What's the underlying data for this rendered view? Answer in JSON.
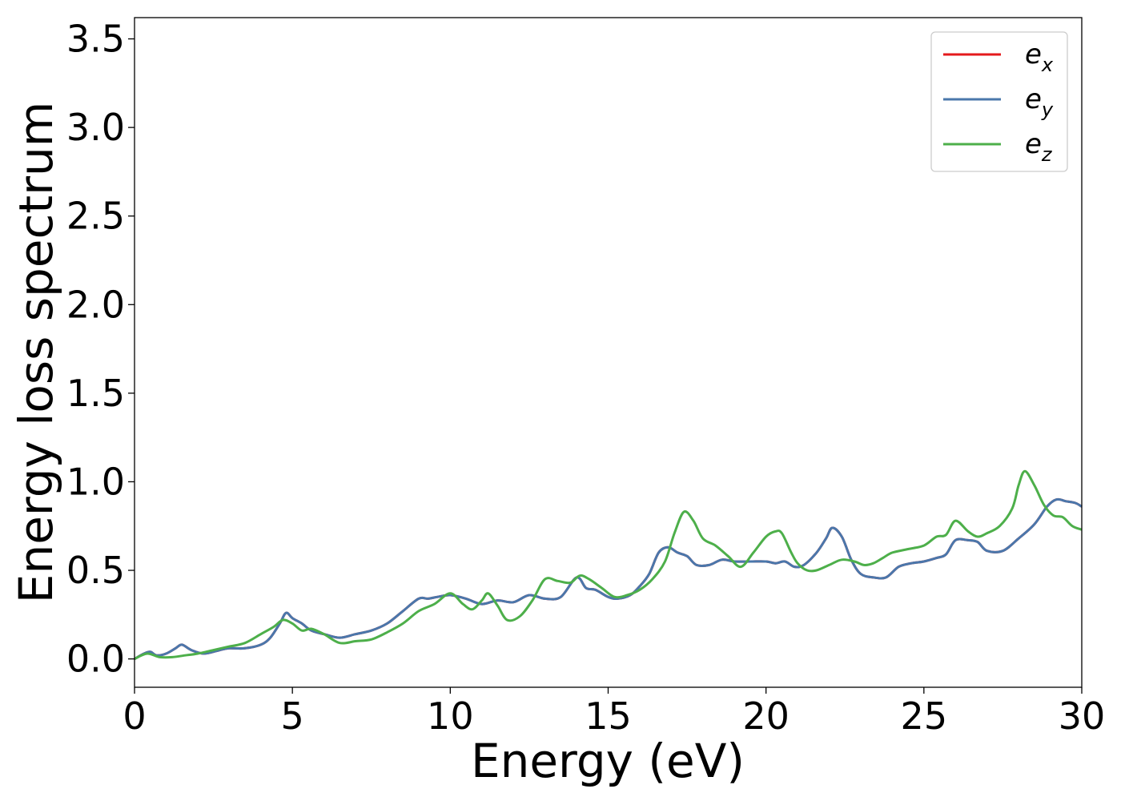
{
  "chart_data": {
    "type": "line",
    "xlabel": "Energy (eV)",
    "ylabel": "Energy loss spectrum",
    "xlim": [
      0,
      30
    ],
    "ylim": [
      -0.16,
      3.62
    ],
    "xticks": [
      "0",
      "5",
      "10",
      "15",
      "20",
      "25",
      "30"
    ],
    "yticks": [
      "0.0",
      "0.5",
      "1.0",
      "1.5",
      "2.0",
      "2.5",
      "3.0",
      "3.5"
    ],
    "grid": false,
    "legend_position": "top-right",
    "series": [
      {
        "name": "e",
        "subscript": "x",
        "color": "#e41a1c",
        "x": [
          0,
          0.3,
          0.5,
          0.7,
          1.0,
          1.3,
          1.5,
          1.8,
          2.2,
          2.7,
          3.0,
          3.5,
          4.0,
          4.3,
          4.6,
          4.8,
          5.0,
          5.3,
          5.6,
          6.0,
          6.5,
          7.0,
          7.5,
          8.0,
          8.5,
          9.0,
          9.3,
          9.6,
          10.0,
          10.5,
          11.0,
          11.5,
          12.0,
          12.5,
          13.0,
          13.5,
          14.0,
          14.3,
          14.6,
          15.0,
          15.3,
          15.7,
          16.0,
          16.3,
          16.6,
          16.9,
          17.2,
          17.5,
          17.8,
          18.2,
          18.6,
          19.0,
          19.5,
          20.0,
          20.3,
          20.6,
          20.9,
          21.2,
          21.6,
          21.9,
          22.1,
          22.4,
          22.7,
          23.0,
          23.4,
          23.8,
          24.2,
          24.6,
          25.0,
          25.4,
          25.7,
          26.0,
          26.4,
          26.7,
          27.0,
          27.5,
          28.0,
          28.5,
          28.9,
          29.2,
          29.5,
          29.8,
          30.0
        ],
        "values": [
          0.0,
          0.03,
          0.04,
          0.02,
          0.03,
          0.06,
          0.08,
          0.05,
          0.03,
          0.05,
          0.06,
          0.06,
          0.08,
          0.12,
          0.2,
          0.26,
          0.23,
          0.2,
          0.16,
          0.14,
          0.12,
          0.14,
          0.16,
          0.2,
          0.27,
          0.34,
          0.34,
          0.35,
          0.36,
          0.34,
          0.31,
          0.33,
          0.32,
          0.36,
          0.34,
          0.35,
          0.46,
          0.4,
          0.39,
          0.35,
          0.34,
          0.36,
          0.41,
          0.48,
          0.6,
          0.63,
          0.6,
          0.58,
          0.53,
          0.53,
          0.56,
          0.55,
          0.55,
          0.55,
          0.54,
          0.55,
          0.52,
          0.53,
          0.6,
          0.68,
          0.74,
          0.69,
          0.56,
          0.48,
          0.46,
          0.46,
          0.52,
          0.54,
          0.55,
          0.57,
          0.59,
          0.67,
          0.67,
          0.66,
          0.61,
          0.61,
          0.68,
          0.76,
          0.86,
          0.9,
          0.89,
          0.88,
          0.86
        ]
      },
      {
        "name": "e",
        "subscript": "y",
        "color": "#4a77ab",
        "x": [
          0,
          0.3,
          0.5,
          0.7,
          1.0,
          1.3,
          1.5,
          1.8,
          2.2,
          2.7,
          3.0,
          3.5,
          4.0,
          4.3,
          4.6,
          4.8,
          5.0,
          5.3,
          5.6,
          6.0,
          6.5,
          7.0,
          7.5,
          8.0,
          8.5,
          9.0,
          9.3,
          9.6,
          10.0,
          10.5,
          11.0,
          11.5,
          12.0,
          12.5,
          13.0,
          13.5,
          14.0,
          14.3,
          14.6,
          15.0,
          15.3,
          15.7,
          16.0,
          16.3,
          16.6,
          16.9,
          17.2,
          17.5,
          17.8,
          18.2,
          18.6,
          19.0,
          19.5,
          20.0,
          20.3,
          20.6,
          20.9,
          21.2,
          21.6,
          21.9,
          22.1,
          22.4,
          22.7,
          23.0,
          23.4,
          23.8,
          24.2,
          24.6,
          25.0,
          25.4,
          25.7,
          26.0,
          26.4,
          26.7,
          27.0,
          27.5,
          28.0,
          28.5,
          28.9,
          29.2,
          29.5,
          29.8,
          30.0
        ],
        "values": [
          0.0,
          0.03,
          0.04,
          0.02,
          0.03,
          0.06,
          0.08,
          0.05,
          0.03,
          0.05,
          0.06,
          0.06,
          0.08,
          0.12,
          0.2,
          0.26,
          0.23,
          0.2,
          0.16,
          0.14,
          0.12,
          0.14,
          0.16,
          0.2,
          0.27,
          0.34,
          0.34,
          0.35,
          0.36,
          0.34,
          0.31,
          0.33,
          0.32,
          0.36,
          0.34,
          0.35,
          0.46,
          0.4,
          0.39,
          0.35,
          0.34,
          0.36,
          0.41,
          0.48,
          0.6,
          0.63,
          0.6,
          0.58,
          0.53,
          0.53,
          0.56,
          0.55,
          0.55,
          0.55,
          0.54,
          0.55,
          0.52,
          0.53,
          0.6,
          0.68,
          0.74,
          0.69,
          0.56,
          0.48,
          0.46,
          0.46,
          0.52,
          0.54,
          0.55,
          0.57,
          0.59,
          0.67,
          0.67,
          0.66,
          0.61,
          0.61,
          0.68,
          0.76,
          0.86,
          0.9,
          0.89,
          0.88,
          0.86
        ]
      },
      {
        "name": "e",
        "subscript": "z",
        "color": "#4daf4a",
        "x": [
          0,
          0.4,
          0.8,
          1.2,
          1.6,
          2.0,
          2.5,
          3.0,
          3.5,
          4.0,
          4.4,
          4.7,
          5.0,
          5.3,
          5.6,
          6.0,
          6.5,
          7.0,
          7.5,
          8.0,
          8.5,
          9.0,
          9.5,
          10.0,
          10.4,
          10.7,
          11.0,
          11.2,
          11.5,
          11.8,
          12.2,
          12.6,
          13.0,
          13.4,
          13.8,
          14.1,
          14.4,
          14.8,
          15.2,
          15.6,
          16.0,
          16.4,
          16.8,
          17.1,
          17.4,
          17.7,
          18.0,
          18.4,
          18.8,
          19.2,
          19.6,
          20.0,
          20.3,
          20.5,
          20.8,
          21.0,
          21.3,
          21.6,
          22.0,
          22.4,
          22.8,
          23.1,
          23.4,
          23.7,
          24.0,
          24.5,
          25.0,
          25.4,
          25.7,
          26.0,
          26.4,
          26.7,
          27.0,
          27.4,
          27.8,
          28.0,
          28.2,
          28.5,
          28.8,
          29.1,
          29.4,
          29.7,
          30.0
        ],
        "values": [
          0.0,
          0.03,
          0.01,
          0.01,
          0.02,
          0.03,
          0.05,
          0.07,
          0.09,
          0.14,
          0.18,
          0.22,
          0.2,
          0.16,
          0.17,
          0.14,
          0.09,
          0.1,
          0.11,
          0.15,
          0.2,
          0.27,
          0.31,
          0.37,
          0.31,
          0.28,
          0.33,
          0.37,
          0.3,
          0.22,
          0.24,
          0.33,
          0.45,
          0.44,
          0.43,
          0.47,
          0.45,
          0.4,
          0.35,
          0.36,
          0.39,
          0.45,
          0.55,
          0.71,
          0.83,
          0.78,
          0.68,
          0.64,
          0.58,
          0.52,
          0.6,
          0.69,
          0.72,
          0.71,
          0.6,
          0.54,
          0.5,
          0.5,
          0.53,
          0.56,
          0.55,
          0.53,
          0.54,
          0.57,
          0.6,
          0.62,
          0.64,
          0.69,
          0.7,
          0.78,
          0.72,
          0.69,
          0.71,
          0.75,
          0.85,
          0.98,
          1.06,
          0.98,
          0.87,
          0.81,
          0.8,
          0.75,
          0.73
        ]
      }
    ]
  }
}
